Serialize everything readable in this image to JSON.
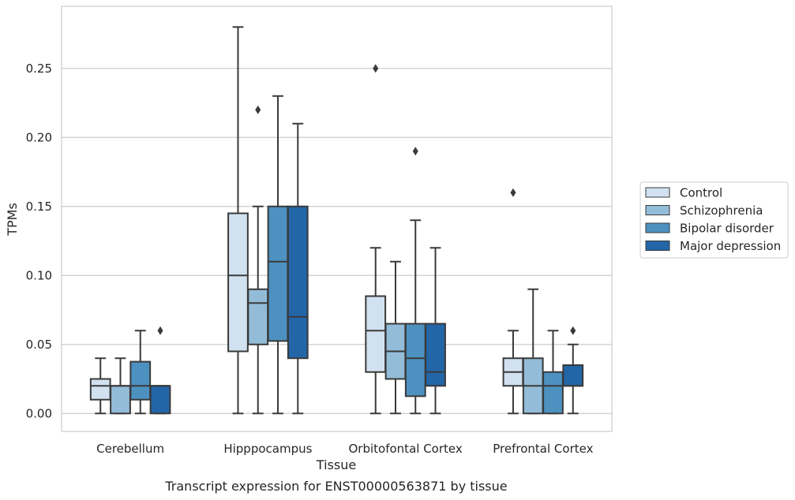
{
  "chart_data": {
    "type": "boxplot",
    "title": "",
    "caption": "Transcript expression for ENST00000563871 by tissue",
    "xlabel": "Tissue",
    "ylabel": "TPMs",
    "ylim": [
      -0.013,
      0.295
    ],
    "yticks": [
      0.0,
      0.05,
      0.1,
      0.15,
      0.2,
      0.25
    ],
    "ytick_labels": [
      "0.00",
      "0.05",
      "0.10",
      "0.15",
      "0.20",
      "0.25"
    ],
    "grid": "horizontal",
    "legend_position": "right",
    "categories": [
      "Cerebellum",
      "Hipppocampus",
      "Orbitofontal Cortex",
      "Prefrontal Cortex"
    ],
    "series": [
      {
        "name": "Control",
        "color": "#d1e1f0",
        "boxes": [
          {
            "min": 0.0,
            "q1": 0.01,
            "median": 0.02,
            "q3": 0.025,
            "max": 0.04,
            "outliers": []
          },
          {
            "min": 0.0,
            "q1": 0.045,
            "median": 0.1,
            "q3": 0.145,
            "max": 0.28,
            "outliers": []
          },
          {
            "min": 0.0,
            "q1": 0.03,
            "median": 0.06,
            "q3": 0.085,
            "max": 0.12,
            "outliers": [
              0.25
            ]
          },
          {
            "min": 0.0,
            "q1": 0.02,
            "median": 0.03,
            "q3": 0.04,
            "max": 0.06,
            "outliers": [
              0.16
            ]
          }
        ]
      },
      {
        "name": "Schizophrenia",
        "color": "#93bcd8",
        "boxes": [
          {
            "min": 0.0,
            "q1": 0.0,
            "median": 0.02,
            "q3": 0.02,
            "max": 0.04,
            "outliers": []
          },
          {
            "min": 0.0,
            "q1": 0.05,
            "median": 0.08,
            "q3": 0.09,
            "max": 0.15,
            "outliers": [
              0.22
            ]
          },
          {
            "min": 0.0,
            "q1": 0.025,
            "median": 0.045,
            "q3": 0.065,
            "max": 0.11,
            "outliers": []
          },
          {
            "min": 0.0,
            "q1": 0.0,
            "median": 0.02,
            "q3": 0.04,
            "max": 0.09,
            "outliers": []
          }
        ]
      },
      {
        "name": "Bipolar disorder",
        "color": "#4d91c0",
        "boxes": [
          {
            "min": 0.0,
            "q1": 0.01,
            "median": 0.02,
            "q3": 0.0375,
            "max": 0.06,
            "outliers": []
          },
          {
            "min": 0.0,
            "q1": 0.0525,
            "median": 0.11,
            "q3": 0.15,
            "max": 0.23,
            "outliers": []
          },
          {
            "min": 0.0,
            "q1": 0.0125,
            "median": 0.04,
            "q3": 0.065,
            "max": 0.14,
            "outliers": [
              0.19
            ]
          },
          {
            "min": 0.0,
            "q1": 0.0,
            "median": 0.02,
            "q3": 0.03,
            "max": 0.06,
            "outliers": []
          }
        ]
      },
      {
        "name": "Major depression",
        "color": "#2266a8",
        "boxes": [
          {
            "min": 0.0,
            "q1": 0.0,
            "median": 0.02,
            "q3": 0.02,
            "max": 0.02,
            "outliers": [
              0.06
            ]
          },
          {
            "min": 0.0,
            "q1": 0.04,
            "median": 0.07,
            "q3": 0.15,
            "max": 0.21,
            "outliers": []
          },
          {
            "min": 0.0,
            "q1": 0.02,
            "median": 0.03,
            "q3": 0.065,
            "max": 0.12,
            "outliers": []
          },
          {
            "min": 0.0,
            "q1": 0.02,
            "median": 0.02,
            "q3": 0.035,
            "max": 0.05,
            "outliers": [
              0.06
            ]
          }
        ]
      }
    ]
  }
}
